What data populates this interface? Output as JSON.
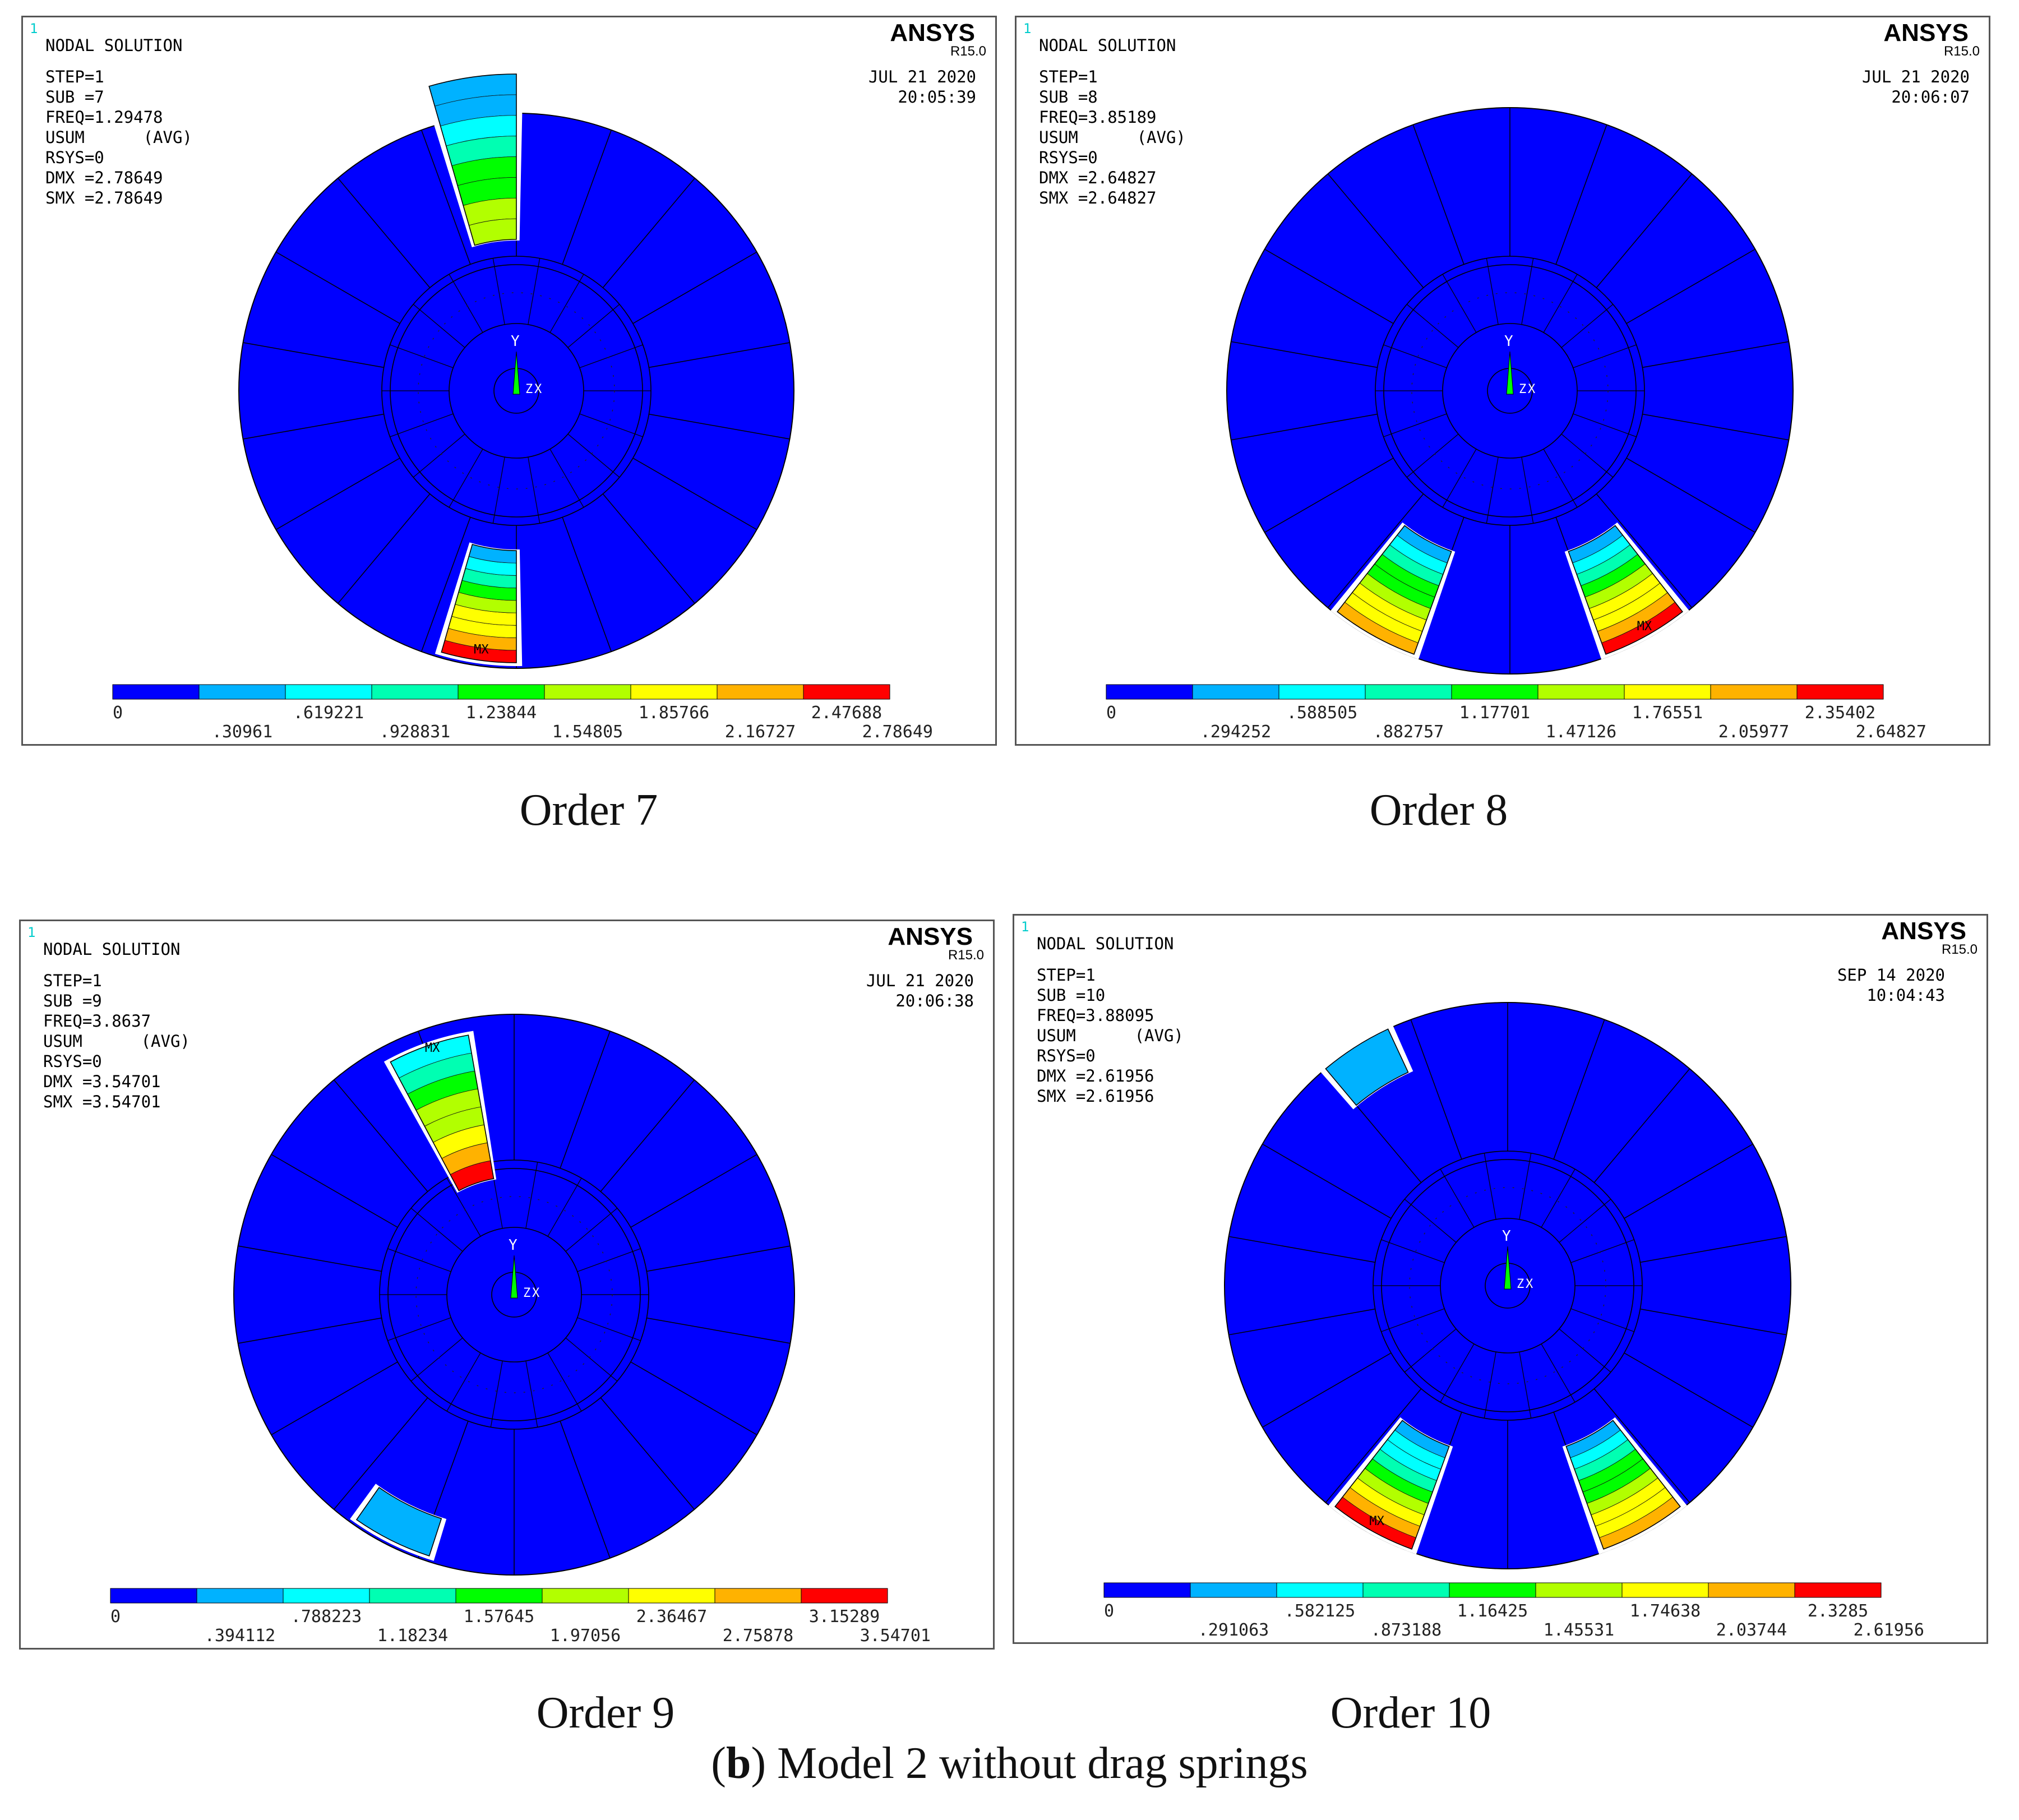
{
  "figure_caption": {
    "letter": "b",
    "text": "Model 2 without drag springs"
  },
  "colors": {
    "blue": "#0000ff",
    "lightblue": "#00b2ff",
    "cyan": "#00ffff",
    "teal": "#00ffb2",
    "green": "#00ff00",
    "lime": "#b2ff00",
    "yellow": "#ffff00",
    "orange": "#ffb200",
    "red": "#ff0000"
  },
  "panels": [
    {
      "caption": "Order 7",
      "window_number": "1",
      "brand": "ANSYS",
      "version": "R15.0",
      "header": "NODAL SOLUTION",
      "info": [
        "STEP=1",
        "SUB =7",
        "FREQ=1.29478",
        "USUM      (AVG)",
        "RSYS=0",
        "DMX =2.78649",
        "SMX =2.78649"
      ],
      "date": "JUL 21 2020",
      "time": "20:05:39",
      "legend_top": [
        "0",
        ".619221",
        "1.23844",
        "1.85766",
        "2.47688"
      ],
      "legend_bottom": [
        ".30961",
        ".928831",
        "1.54805",
        "2.16727",
        "2.78649"
      ],
      "mx_label": "MX"
    },
    {
      "caption": "Order 8",
      "window_number": "1",
      "brand": "ANSYS",
      "version": "R15.0",
      "header": "NODAL SOLUTION",
      "info": [
        "STEP=1",
        "SUB =8",
        "FREQ=3.85189",
        "USUM      (AVG)",
        "RSYS=0",
        "DMX =2.64827",
        "SMX =2.64827"
      ],
      "date": "JUL 21 2020",
      "time": "20:06:07",
      "legend_top": [
        "0",
        ".588505",
        "1.17701",
        "1.76551",
        "2.35402"
      ],
      "legend_bottom": [
        ".294252",
        ".882757",
        "1.47126",
        "2.05977",
        "2.64827"
      ],
      "mx_label": "MX"
    },
    {
      "caption": "Order 9",
      "window_number": "1",
      "brand": "ANSYS",
      "version": "R15.0",
      "header": "NODAL SOLUTION",
      "info": [
        "STEP=1",
        "SUB =9",
        "FREQ=3.8637",
        "USUM      (AVG)",
        "RSYS=0",
        "DMX =3.54701",
        "SMX =3.54701"
      ],
      "date": "JUL 21 2020",
      "time": "20:06:38",
      "legend_top": [
        "0",
        ".788223",
        "1.57645",
        "2.36467",
        "3.15289"
      ],
      "legend_bottom": [
        ".394112",
        "1.18234",
        "1.97056",
        "2.75878",
        "3.54701"
      ],
      "mx_label": "MX"
    },
    {
      "caption": "Order 10",
      "window_number": "1",
      "brand": "ANSYS",
      "version": "R15.0",
      "header": "NODAL SOLUTION",
      "info": [
        "STEP=1",
        "SUB =10",
        "FREQ=3.88095",
        "USUM      (AVG)",
        "RSYS=0",
        "DMX =2.61956",
        "SMX =2.61956"
      ],
      "date": "SEP 14 2020",
      "time": "10:04:43",
      "legend_top": [
        "0",
        ".582125",
        "1.16425",
        "1.74638",
        "2.3285"
      ],
      "legend_bottom": [
        ".291063",
        ".873188",
        "1.45531",
        "2.03744",
        "2.61956"
      ],
      "mx_label": "MX"
    }
  ],
  "axis_labels": {
    "y": "Y",
    "x": "X",
    "z": "Z"
  }
}
